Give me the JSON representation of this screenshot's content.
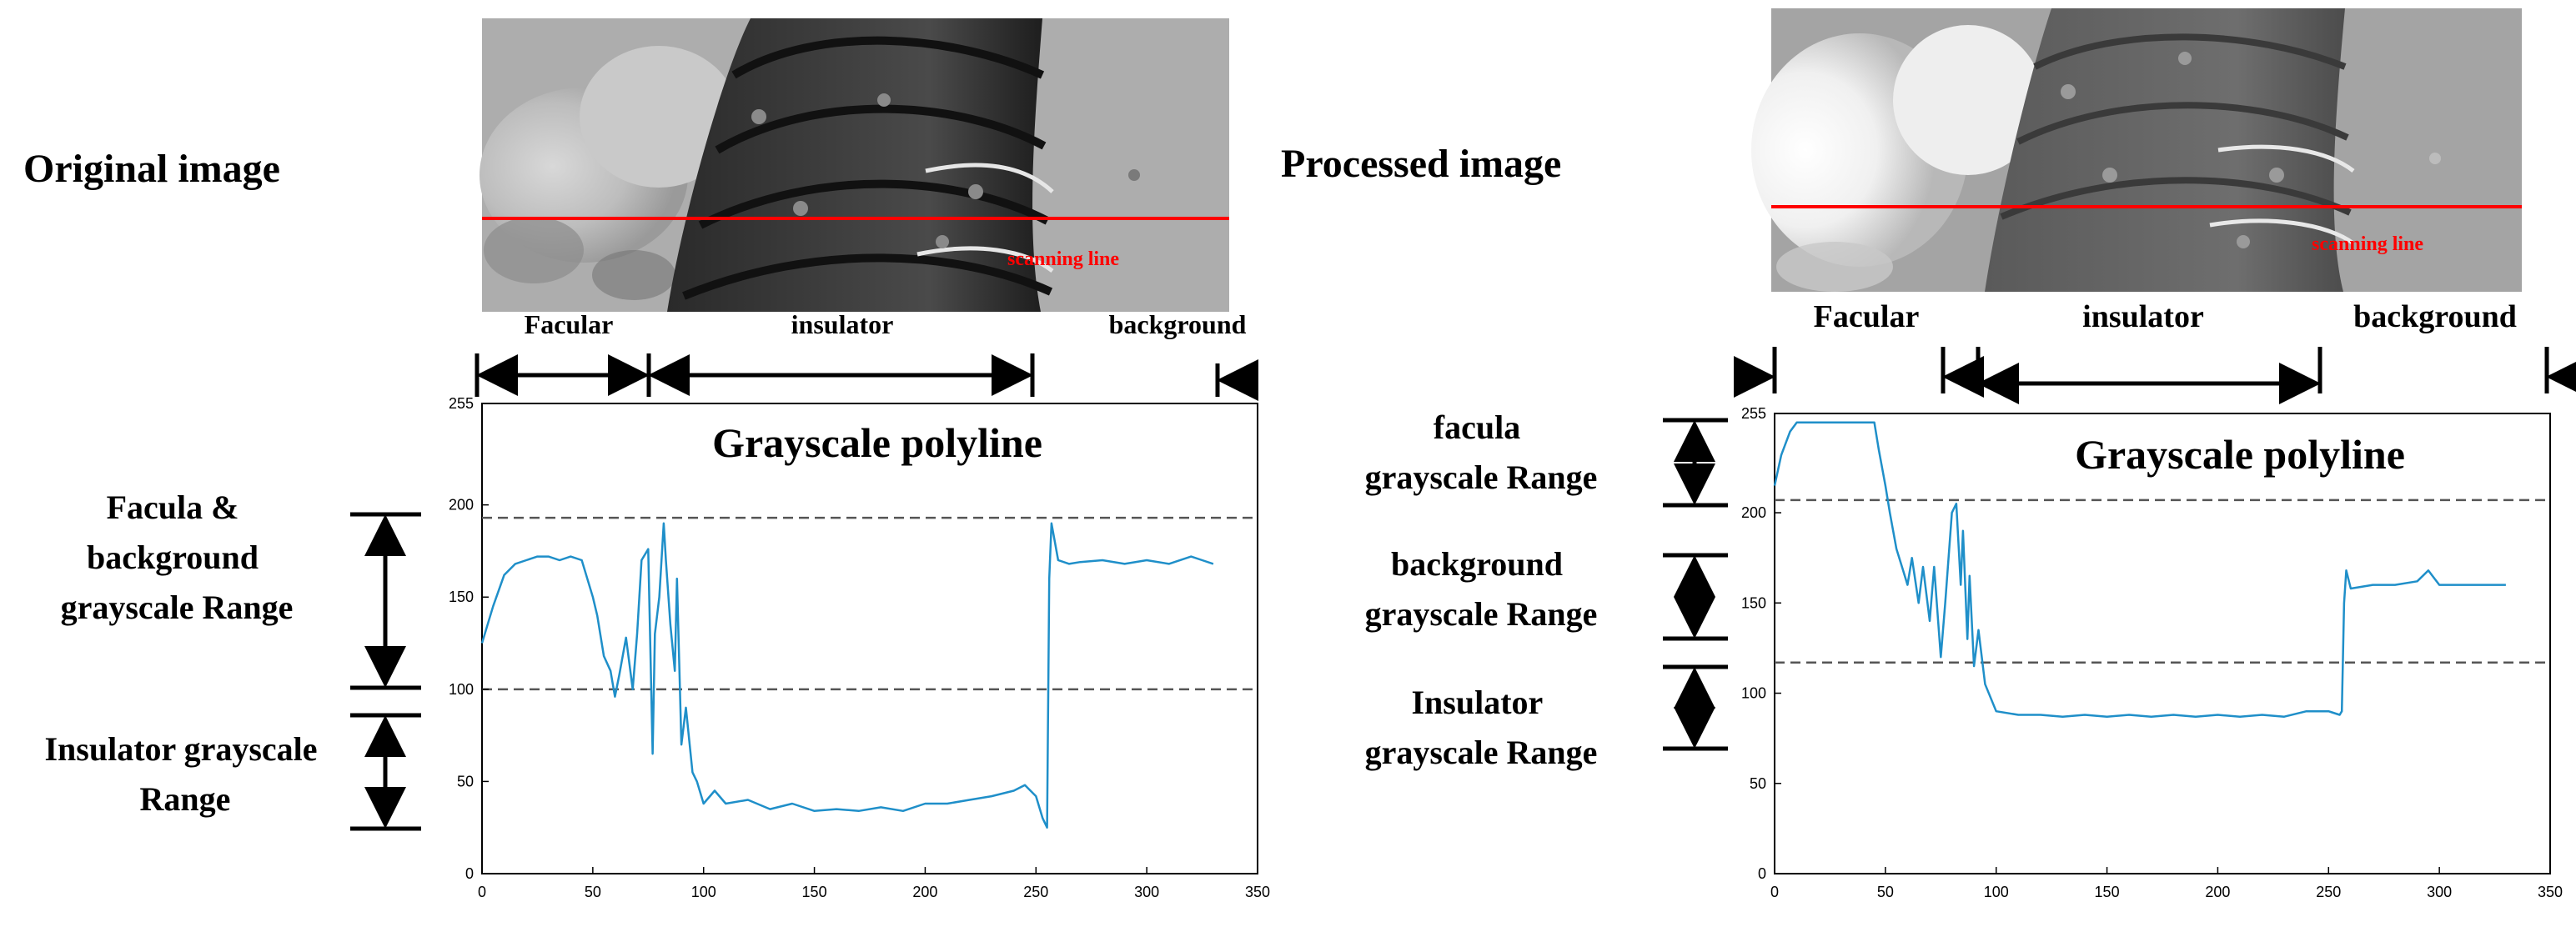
{
  "left": {
    "heading": "Original image",
    "scan_label": "scanning line",
    "region_labels": {
      "facula": "Facular",
      "insulator": "insulator",
      "background": "background"
    },
    "plot_title": "Grayscale polyline",
    "range_labels": {
      "upper": [
        "Facula &",
        "background",
        "grayscale Range"
      ],
      "lower": [
        "Insulator grayscale",
        "Range"
      ]
    }
  },
  "right": {
    "heading": "Processed image",
    "scan_label": "scanning line",
    "region_labels": {
      "facula": "Facular",
      "insulator": "insulator",
      "background": "background"
    },
    "plot_title": "Grayscale polyline",
    "range_labels": {
      "top": [
        "facula",
        "grayscale Range"
      ],
      "middle": [
        "background",
        "grayscale Range"
      ],
      "bottom": [
        "Insulator",
        "grayscale Range"
      ]
    }
  },
  "colors": {
    "series": "#1f8fc9",
    "scan_line": "#ff0000",
    "threshold": "#555555"
  },
  "chart_data": [
    {
      "type": "line",
      "title": "Grayscale polyline",
      "xlim": [
        0,
        350
      ],
      "ylim": [
        0,
        255
      ],
      "xticks": [
        0,
        50,
        100,
        150,
        200,
        250,
        300,
        350
      ],
      "yticks": [
        0,
        50,
        100,
        150,
        200,
        255
      ],
      "thresholds": [
        193,
        100
      ],
      "series": [
        {
          "x": [
            0,
            5,
            10,
            15,
            20,
            25,
            30,
            35,
            40,
            45,
            50,
            52,
            55,
            58,
            60,
            62,
            65,
            68,
            70,
            72,
            75,
            77,
            78,
            80,
            82,
            83,
            85,
            87,
            88,
            90,
            92,
            95,
            97,
            100,
            105,
            110,
            120,
            130,
            140,
            150,
            160,
            170,
            180,
            190,
            200,
            210,
            220,
            230,
            240,
            245,
            250,
            253,
            255,
            256,
            257,
            260,
            265,
            270,
            280,
            290,
            300,
            310,
            320,
            325,
            330
          ],
          "y": [
            125,
            145,
            162,
            168,
            170,
            172,
            172,
            170,
            172,
            170,
            150,
            140,
            118,
            110,
            96,
            108,
            128,
            100,
            130,
            170,
            176,
            65,
            130,
            150,
            190,
            170,
            135,
            110,
            160,
            70,
            90,
            55,
            50,
            38,
            45,
            38,
            40,
            35,
            38,
            34,
            35,
            34,
            36,
            34,
            38,
            38,
            40,
            42,
            45,
            48,
            42,
            30,
            25,
            160,
            190,
            170,
            168,
            169,
            170,
            168,
            170,
            168,
            172,
            170,
            168
          ]
        }
      ]
    },
    {
      "type": "line",
      "title": "Grayscale polyline",
      "xlim": [
        0,
        350
      ],
      "ylim": [
        0,
        255
      ],
      "xticks": [
        0,
        50,
        100,
        150,
        200,
        250,
        300,
        350
      ],
      "yticks": [
        0,
        50,
        100,
        150,
        200,
        255
      ],
      "thresholds": [
        207,
        117
      ],
      "series": [
        {
          "x": [
            0,
            3,
            7,
            10,
            15,
            20,
            30,
            40,
            45,
            47,
            50,
            52,
            55,
            58,
            60,
            62,
            65,
            67,
            70,
            72,
            75,
            77,
            80,
            82,
            84,
            85,
            87,
            88,
            90,
            92,
            95,
            100,
            110,
            120,
            130,
            140,
            150,
            160,
            170,
            180,
            190,
            200,
            210,
            220,
            230,
            240,
            250,
            255,
            256,
            257,
            258,
            260,
            270,
            280,
            290,
            295,
            300,
            310,
            320,
            330
          ],
          "y": [
            215,
            232,
            245,
            250,
            250,
            250,
            250,
            250,
            250,
            235,
            215,
            200,
            180,
            168,
            160,
            175,
            150,
            170,
            140,
            170,
            120,
            150,
            200,
            205,
            160,
            190,
            130,
            165,
            115,
            135,
            105,
            90,
            88,
            88,
            87,
            88,
            87,
            88,
            87,
            88,
            87,
            88,
            87,
            88,
            87,
            90,
            90,
            88,
            90,
            150,
            168,
            158,
            160,
            160,
            162,
            168,
            160,
            160,
            160,
            160
          ]
        }
      ]
    }
  ]
}
